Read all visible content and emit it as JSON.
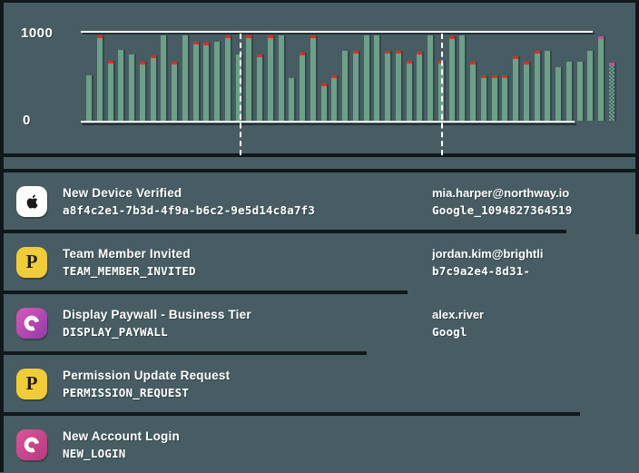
{
  "palette": {
    "background": "#475d63",
    "line_dark": "#10181b",
    "bar_green": "#6ca087",
    "cap_red": "#e02d23",
    "cap_pink": "#c8509c",
    "icon_yellow": "#f0cc39",
    "icon_purple_start": "#da58bc",
    "icon_purple_end": "#8f3ba6",
    "icon_pink_start": "#db5597",
    "icon_pink_end": "#b53a7f",
    "text": "#ffffff"
  },
  "chart_data": {
    "type": "bar",
    "title": "",
    "xlabel": "",
    "ylabel": "",
    "ylim": [
      0,
      1000
    ],
    "y_tick_top": "1000",
    "y_tick_bottom": "0",
    "grid": "top and bottom rule only",
    "legend": "none",
    "marker_positions_pct": [
      29.8,
      67.5
    ],
    "bars": [
      {
        "v": 510,
        "cap": "none"
      },
      {
        "v": 945,
        "cap": "red"
      },
      {
        "v": 665,
        "cap": "red"
      },
      {
        "v": 785,
        "cap": "none"
      },
      {
        "v": 740,
        "cap": "none"
      },
      {
        "v": 660,
        "cap": "red"
      },
      {
        "v": 725,
        "cap": "red"
      },
      {
        "v": 945,
        "cap": "none"
      },
      {
        "v": 660,
        "cap": "red"
      },
      {
        "v": 945,
        "cap": "none"
      },
      {
        "v": 875,
        "cap": "red"
      },
      {
        "v": 865,
        "cap": "red"
      },
      {
        "v": 875,
        "cap": "none"
      },
      {
        "v": 945,
        "cap": "red"
      },
      {
        "v": 735,
        "cap": "none"
      },
      {
        "v": 945,
        "cap": "red"
      },
      {
        "v": 735,
        "cap": "red"
      },
      {
        "v": 945,
        "cap": "red"
      },
      {
        "v": 945,
        "cap": "none"
      },
      {
        "v": 475,
        "cap": "none"
      },
      {
        "v": 755,
        "cap": "red"
      },
      {
        "v": 945,
        "cap": "red"
      },
      {
        "v": 415,
        "cap": "red"
      },
      {
        "v": 505,
        "cap": "red"
      },
      {
        "v": 775,
        "cap": "none"
      },
      {
        "v": 780,
        "cap": "red"
      },
      {
        "v": 945,
        "cap": "none"
      },
      {
        "v": 945,
        "cap": "none"
      },
      {
        "v": 780,
        "cap": "red"
      },
      {
        "v": 780,
        "cap": "red"
      },
      {
        "v": 665,
        "cap": "red"
      },
      {
        "v": 765,
        "cap": "red"
      },
      {
        "v": 945,
        "cap": "none"
      },
      {
        "v": 665,
        "cap": "red"
      },
      {
        "v": 935,
        "cap": "red"
      },
      {
        "v": 945,
        "cap": "none"
      },
      {
        "v": 660,
        "cap": "red"
      },
      {
        "v": 505,
        "cap": "red"
      },
      {
        "v": 505,
        "cap": "red"
      },
      {
        "v": 505,
        "cap": "red"
      },
      {
        "v": 720,
        "cap": "red"
      },
      {
        "v": 660,
        "cap": "red"
      },
      {
        "v": 775,
        "cap": "red"
      },
      {
        "v": 775,
        "cap": "none"
      },
      {
        "v": 595,
        "cap": "none"
      },
      {
        "v": 660,
        "cap": "none"
      },
      {
        "v": 660,
        "cap": "none"
      },
      {
        "v": 775,
        "cap": "none"
      },
      {
        "v": 935,
        "cap": "pink"
      },
      {
        "v": 650,
        "cap": "pink",
        "dither": true
      }
    ]
  },
  "events": [
    {
      "icon": "apple-logo",
      "title": "New Device Verified",
      "code": "a8f4c2e1-7b3d-4f9a-b6c2-9e5d14c8a7f3",
      "meta_primary": "mia.harper@northway.io",
      "meta_secondary": "Google_1094827364519"
    },
    {
      "icon": "letter-p",
      "title": "Team Member Invited",
      "code": "TEAM_MEMBER_INVITED",
      "meta_primary": "jordan.kim@brightli",
      "meta_secondary": "b7c9a2e4-8d31-"
    },
    {
      "icon": "letter-c",
      "title": "Display Paywall - Business Tier",
      "code": "DISPLAY_PAYWALL",
      "meta_primary": "alex.river",
      "meta_secondary": "Googl"
    },
    {
      "icon": "letter-p",
      "title": "Permission Update Request",
      "code": "PERMISSION_REQUEST",
      "meta_primary": "",
      "meta_secondary": ""
    },
    {
      "icon": "letter-c",
      "title": "New Account Login",
      "code": "NEW_LOGIN",
      "meta_primary": "",
      "meta_secondary": ""
    }
  ]
}
